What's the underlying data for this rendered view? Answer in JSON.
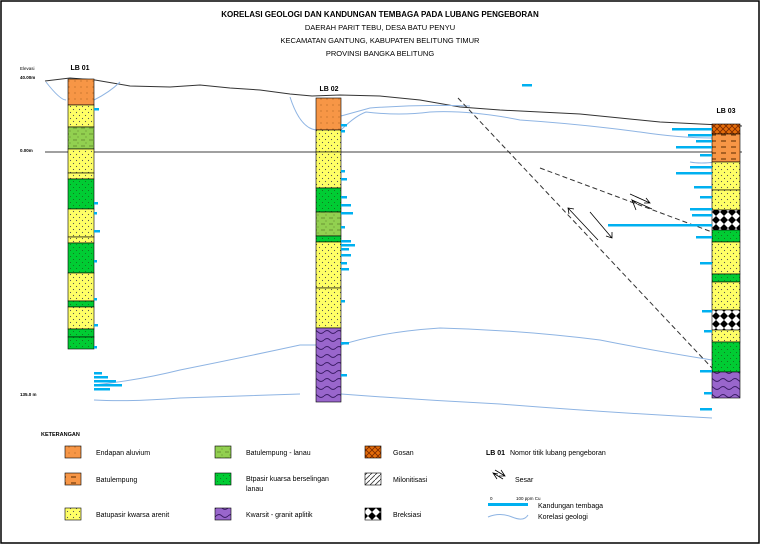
{
  "title": {
    "line1": "KORELASI GEOLOGI DAN  KANDUNGAN TEMBAGA PADA LUBANG PENGEBORAN",
    "line2": "DAERAH PARIT TEBU, DESA BATU PENYU",
    "line3": "KECAMATAN GANTUNG, KABUPATEN BELITUNG TIMUR",
    "line4": "PROVINSI  BANGKA BELITUNG"
  },
  "elevation": {
    "label": "Elevasi",
    "top": "40.00m",
    "zero": "0.00m",
    "bottom": "135.0 m"
  },
  "boreholes": [
    {
      "id": "LB 01",
      "units": [
        "alluvium",
        "sandstone",
        "claysilt",
        "sandstone",
        "sandstone",
        "interbed",
        "sandstone",
        "sandstone",
        "interbed",
        "sandstone",
        "interbed",
        "sandstone",
        "interbed",
        "interbed"
      ]
    },
    {
      "id": "LB 02",
      "units": [
        "alluvium",
        "sandstone",
        "sandstone",
        "interbed",
        "claysilt",
        "interbed",
        "sandstone",
        "sandstone",
        "quartzite"
      ]
    },
    {
      "id": "LB 03",
      "units": [
        "gosan",
        "clay",
        "sandstone",
        "sandstone",
        "breccia",
        "interbed",
        "sandstone",
        "interbed",
        "sandstone",
        "breccia",
        "sandstone",
        "interbed",
        "quartzite"
      ]
    }
  ],
  "legend": {
    "heading": "KETERANGAN",
    "items": [
      {
        "key": "alluvium",
        "label": "Endapan aluvium"
      },
      {
        "key": "clay",
        "label": "Batulempung"
      },
      {
        "key": "sandstone",
        "label": "Batupasir kwarsa arenit"
      },
      {
        "key": "claysilt",
        "label": "Batulempung - lanau"
      },
      {
        "key": "interbed",
        "label": "Btpasir kuarsa berselingan lanau"
      },
      {
        "key": "quartzite",
        "label": "Kwarsit - granit aplitik"
      },
      {
        "key": "gosan",
        "label": "Gosan"
      },
      {
        "key": "mylonite",
        "label": "Milonitisasi"
      },
      {
        "key": "breccia",
        "label": "Breksiasi"
      }
    ],
    "borehole_key_id": "LB 01",
    "borehole_key_text": "Nomor titik lubang pengeboran",
    "fault": "Sesar",
    "scale_zero": "0",
    "scale_value": "100 ppm Cu",
    "copper": "Kandungan tembaga",
    "correlation": "Korelasi geologi"
  },
  "colors": {
    "alluvium": "#f79646",
    "clay": "#f79646",
    "sandstone": "#ffff66",
    "claysilt": "#92d050",
    "interbed": "#00cc33",
    "quartzite": "#9966cc",
    "gosan": "#e46c0a",
    "copper_bar": "#00b0f0",
    "correlation_line": "#8eb4e3"
  }
}
